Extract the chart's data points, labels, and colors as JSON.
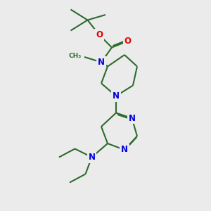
{
  "bg_color": "#ebebeb",
  "bond_color": "#2d6b2d",
  "n_color": "#0000dd",
  "o_color": "#dd0000",
  "bond_lw": 1.5,
  "font_size": 8.5,
  "dpi": 100,
  "figsize": [
    3.0,
    3.0
  ],
  "dbo": 0.06,
  "xlim": [
    0,
    10
  ],
  "ylim": [
    0,
    10
  ]
}
